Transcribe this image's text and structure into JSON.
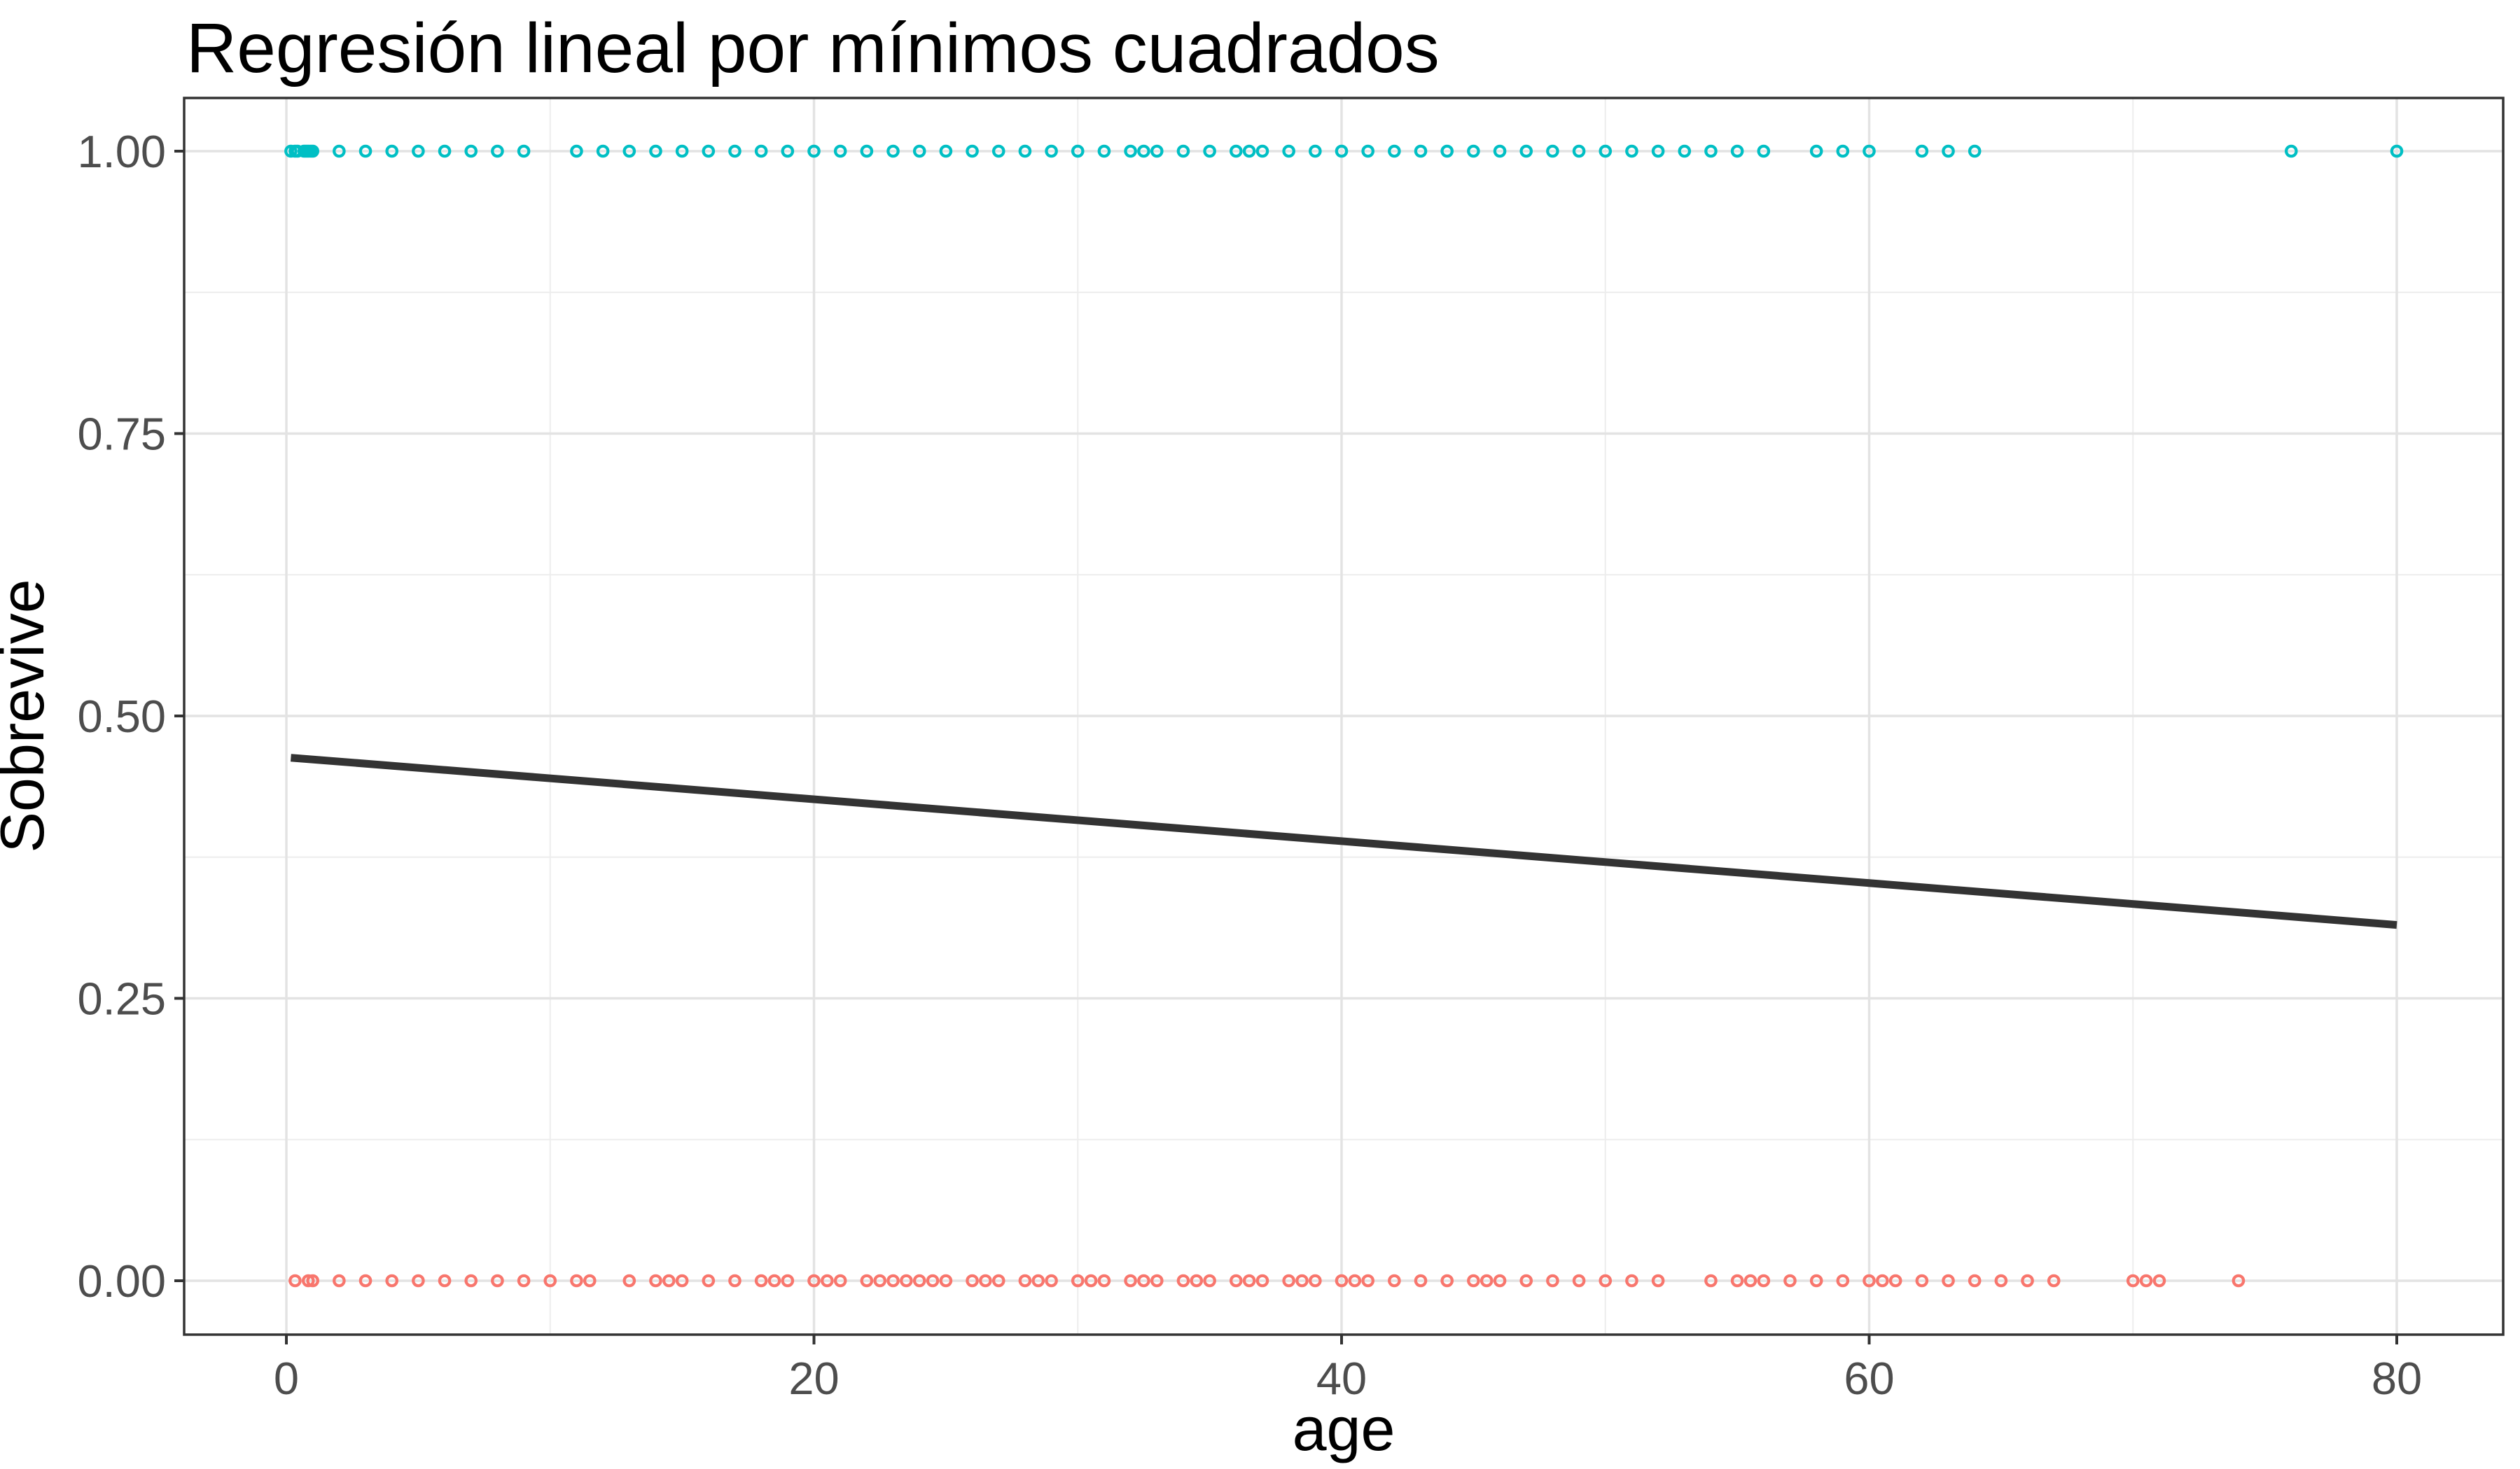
{
  "chart_data": {
    "type": "scatter",
    "title": "Regresión lineal por mínimos cuadrados",
    "xlabel": "age",
    "ylabel": "Sobrevive",
    "xlim": [
      -3.9,
      84.0
    ],
    "ylim": [
      -0.048,
      1.048
    ],
    "grid": true,
    "legend_position": "none",
    "x_ticks": {
      "values": [
        0,
        20,
        40,
        60,
        80
      ],
      "labels": [
        "0",
        "20",
        "40",
        "60",
        "80"
      ]
    },
    "x_minor_ticks": [
      10,
      30,
      50,
      70
    ],
    "y_ticks": {
      "values": [
        0,
        0.25,
        0.5,
        0.75,
        1
      ],
      "labels": [
        "0.00",
        "0.25",
        "0.50",
        "0.75",
        "1.00"
      ]
    },
    "y_minor_ticks": [
      0.125,
      0.375,
      0.625,
      0.875
    ],
    "series": [
      {
        "name": "sobrevive-1",
        "marker": "open-circle",
        "color": "#00BFC4",
        "y": 1,
        "x": [
          0.17,
          0.33,
          0.42,
          0.67,
          0.75,
          0.83,
          0.92,
          1,
          2,
          3,
          4,
          5,
          6,
          7,
          8,
          9,
          11,
          12,
          13,
          14,
          15,
          16,
          17,
          18,
          19,
          20,
          21,
          22,
          23,
          24,
          25,
          26,
          27,
          28,
          29,
          30,
          31,
          32,
          32.5,
          33,
          34,
          35,
          36,
          36.5,
          37,
          38,
          39,
          40,
          41,
          42,
          43,
          44,
          45,
          46,
          47,
          48,
          49,
          50,
          51,
          52,
          53,
          54,
          55,
          56,
          58,
          59,
          60,
          62,
          63,
          64,
          76,
          80
        ]
      },
      {
        "name": "sobrevive-0",
        "marker": "open-circle",
        "color": "#F8766D",
        "y": 0,
        "x": [
          0.33,
          0.83,
          1,
          2,
          3,
          4,
          5,
          6,
          7,
          8,
          9,
          10,
          11,
          11.5,
          13,
          14,
          14.5,
          15,
          16,
          17,
          18,
          18.5,
          19,
          20,
          20.5,
          21,
          22,
          22.5,
          23,
          23.5,
          24,
          24.5,
          25,
          26,
          26.5,
          27,
          28,
          28.5,
          29,
          30,
          30.5,
          31,
          32,
          32.5,
          33,
          34,
          34.5,
          35,
          36,
          36.5,
          37,
          38,
          38.5,
          39,
          40,
          40.5,
          41,
          42,
          43,
          44,
          45,
          45.5,
          46,
          47,
          48,
          49,
          50,
          51,
          52,
          54,
          55,
          55.5,
          56,
          57,
          58,
          59,
          60,
          60.5,
          61,
          62,
          63,
          64,
          65,
          66,
          67,
          70,
          70.5,
          71,
          74
        ]
      }
    ],
    "regression_line": {
      "name": "ols-fit-line",
      "color": "#333333",
      "x1": 0.17,
      "y1": 0.463,
      "x2": 80,
      "y2": 0.315
    },
    "colors": {
      "background": "#FFFFFF",
      "panel_background": "#FFFFFF",
      "panel_border": "#333333",
      "grid_major": "#E3E3E3",
      "grid_minor": "#EDEDED",
      "tick_mark": "#333333",
      "tick_text": "#4D4D4D",
      "title_text": "#000000"
    }
  }
}
